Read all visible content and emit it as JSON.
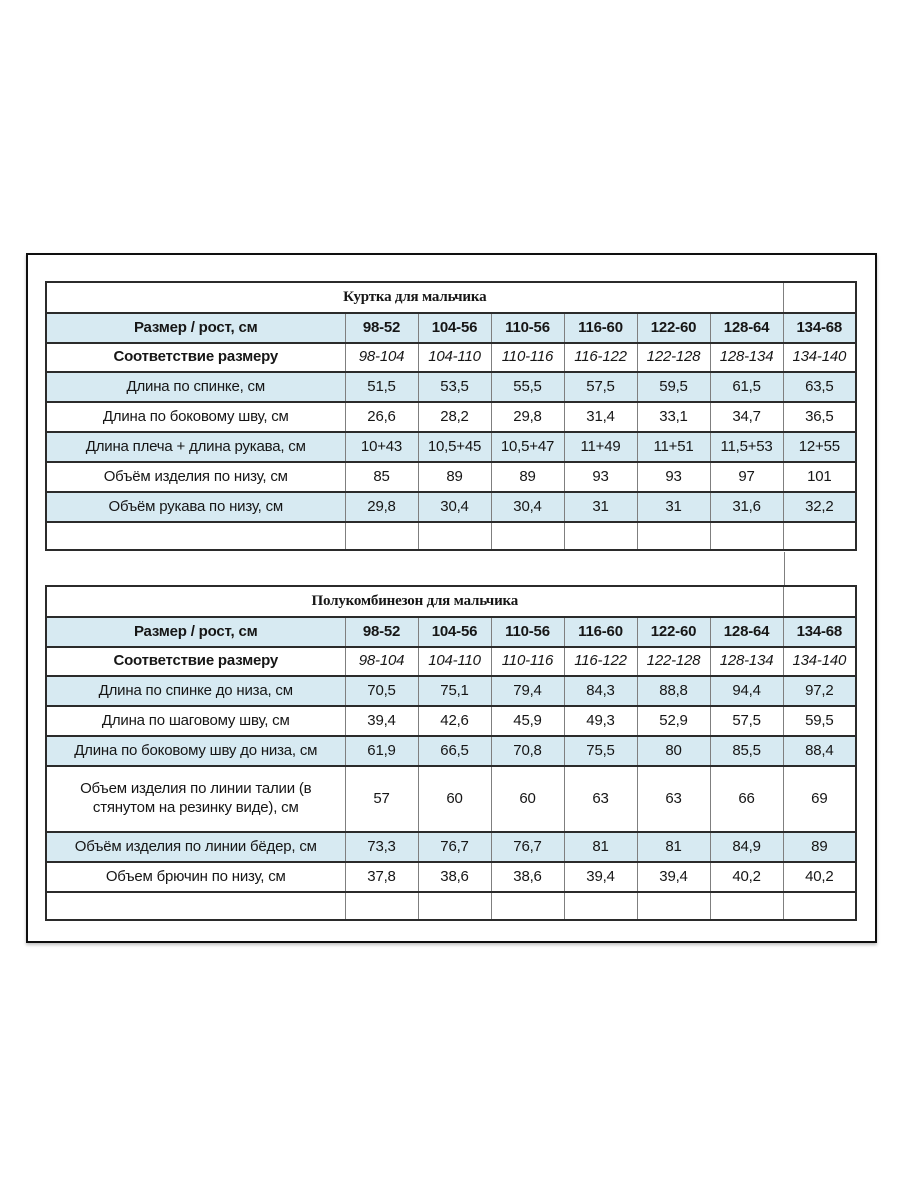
{
  "document": {
    "colors": {
      "highlight": "#d7eaf2",
      "border_dark": "#2b2b2b",
      "border_light": "#7f7f7f"
    },
    "tables": [
      {
        "title": "Куртка для мальчика",
        "size_label": "Размер / рост, см",
        "sizes": [
          "98-52",
          "104-56",
          "110-56",
          "116-60",
          "122-60",
          "128-64",
          "134-68"
        ],
        "correspondence_label": "Соответствие размеру",
        "correspondence": [
          "98-104",
          "104-110",
          "110-116",
          "116-122",
          "122-128",
          "128-134",
          "134-140"
        ],
        "rows": [
          {
            "label": "Длина по спинке, см",
            "values": [
              "51,5",
              "53,5",
              "55,5",
              "57,5",
              "59,5",
              "61,5",
              "63,5"
            ]
          },
          {
            "label": "Длина по боковому шву, см",
            "values": [
              "26,6",
              "28,2",
              "29,8",
              "31,4",
              "33,1",
              "34,7",
              "36,5"
            ]
          },
          {
            "label": "Длина плеча + длина рукава, см",
            "values": [
              "10+43",
              "10,5+45",
              "10,5+47",
              "11+49",
              "11+51",
              "11,5+53",
              "12+55"
            ]
          },
          {
            "label": "Объём изделия по низу, см",
            "values": [
              "85",
              "89",
              "89",
              "93",
              "93",
              "97",
              "101"
            ]
          },
          {
            "label": "Объём рукава по низу, см",
            "values": [
              "29,8",
              "30,4",
              "30,4",
              "31",
              "31",
              "31,6",
              "32,2"
            ]
          }
        ]
      },
      {
        "title": "Полукомбинезон для мальчика",
        "size_label": "Размер / рост, см",
        "sizes": [
          "98-52",
          "104-56",
          "110-56",
          "116-60",
          "122-60",
          "128-64",
          "134-68"
        ],
        "correspondence_label": "Соответствие размеру",
        "correspondence": [
          "98-104",
          "104-110",
          "110-116",
          "116-122",
          "122-128",
          "128-134",
          "134-140"
        ],
        "rows": [
          {
            "label": "Длина по спинке до низа, см",
            "values": [
              "70,5",
              "75,1",
              "79,4",
              "84,3",
              "88,8",
              "94,4",
              "97,2"
            ]
          },
          {
            "label": "Длина по шаговому шву, см",
            "values": [
              "39,4",
              "42,6",
              "45,9",
              "49,3",
              "52,9",
              "57,5",
              "59,5"
            ]
          },
          {
            "label": "Длина по боковому шву до низа, см",
            "values": [
              "61,9",
              "66,5",
              "70,8",
              "75,5",
              "80",
              "85,5",
              "88,4"
            ]
          },
          {
            "label": "Объем изделия по линии талии (в стянутом на резинку виде), см",
            "values": [
              "57",
              "60",
              "60",
              "63",
              "63",
              "66",
              "69"
            ]
          },
          {
            "label": "Объём изделия по линии бёдер, см",
            "values": [
              "73,3",
              "76,7",
              "76,7",
              "81",
              "81",
              "84,9",
              "89"
            ]
          },
          {
            "label": "Объем брючин по низу, см",
            "values": [
              "37,8",
              "38,6",
              "38,6",
              "39,4",
              "39,4",
              "40,2",
              "40,2"
            ]
          }
        ]
      }
    ]
  }
}
